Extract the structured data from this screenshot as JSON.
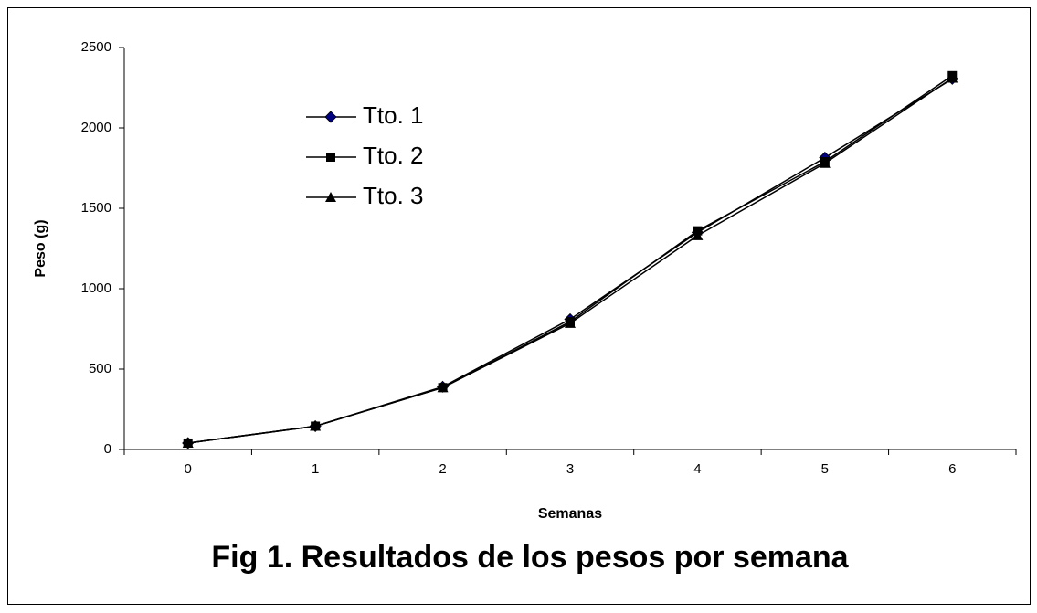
{
  "chart_data": {
    "type": "line",
    "title": "Fig 1. Resultados de los pesos por semana",
    "xlabel": "Semanas",
    "ylabel": "Peso (g)",
    "categories": [
      "0",
      "1",
      "2",
      "3",
      "4",
      "5",
      "6"
    ],
    "series": [
      {
        "name": "Tto. 1",
        "color": "#000080",
        "marker": "diamond",
        "values": [
          40,
          145,
          390,
          810,
          1350,
          1815,
          2305
        ]
      },
      {
        "name": "Tto. 2",
        "color": "#000000",
        "marker": "square",
        "values": [
          40,
          145,
          385,
          795,
          1360,
          1790,
          2325
        ]
      },
      {
        "name": "Tto. 3",
        "color": "#000000",
        "marker": "triangle",
        "values": [
          40,
          145,
          385,
          785,
          1330,
          1780,
          2310
        ]
      }
    ],
    "ylim": [
      0,
      2500
    ],
    "yticks": [
      0,
      500,
      1000,
      1500,
      2000,
      2500
    ],
    "grid": false,
    "legend": "upper left"
  }
}
